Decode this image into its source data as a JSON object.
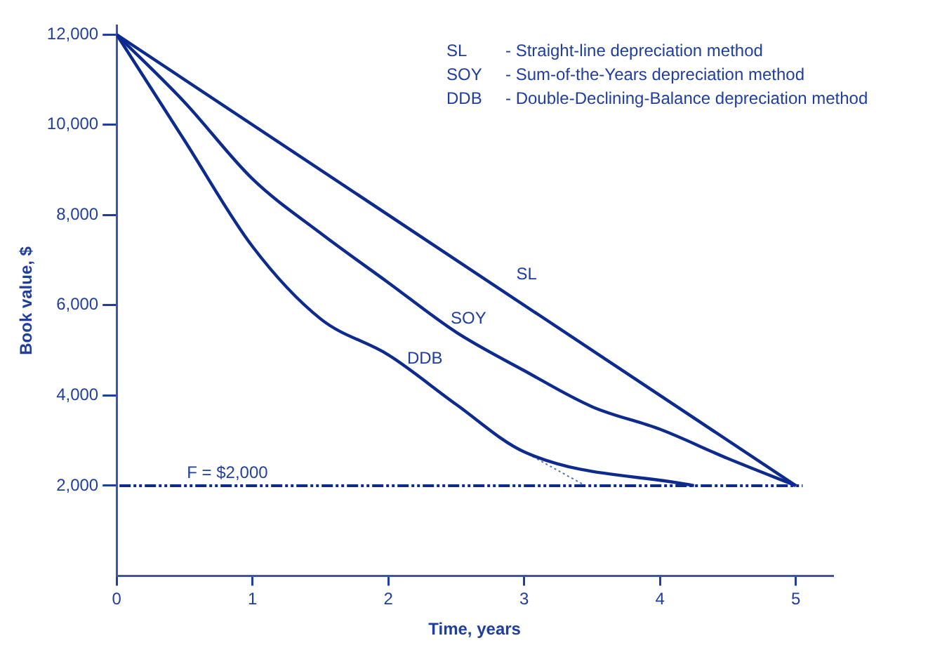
{
  "chart_data": {
    "type": "line",
    "xlabel": "Time, years",
    "ylabel": "Book value, $",
    "xlim": [
      0,
      5.27
    ],
    "xticks": [
      0,
      1,
      2,
      3,
      4,
      5
    ],
    "ylim": [
      0,
      12200
    ],
    "yticks": [
      {
        "value": 2000,
        "label": "2,000"
      },
      {
        "value": 4000,
        "label": "4,000"
      },
      {
        "value": 6000,
        "label": "6,000"
      },
      {
        "value": 8000,
        "label": "8,000"
      },
      {
        "value": 10000,
        "label": "10,000"
      },
      {
        "value": 12000,
        "label": "12,000"
      }
    ],
    "grid": false,
    "legend": false,
    "marker": "none",
    "series": [
      {
        "name": "SL",
        "color": "#0d2a8f",
        "x": [
          0,
          5
        ],
        "values": [
          12000,
          2000
        ]
      },
      {
        "name": "SOY",
        "color": "#0d2a8f",
        "x": [
          0,
          0.5,
          1,
          1.5,
          2,
          2.5,
          3,
          3.5,
          4,
          4.5,
          5
        ],
        "values": [
          12000,
          10500,
          8800,
          7600,
          6500,
          5400,
          4550,
          3750,
          3250,
          2600,
          2000
        ]
      },
      {
        "name": "DDB",
        "color": "#0d2a8f",
        "x": [
          0,
          0.5,
          1,
          1.5,
          2,
          2.5,
          3,
          4.25
        ],
        "values": [
          12000,
          9650,
          7300,
          5700,
          4900,
          3800,
          2750,
          2000
        ]
      },
      {
        "color": "#5a6fb8",
        "line_style": "dotted",
        "x": [
          3,
          3.45
        ],
        "values": [
          2750,
          2000
        ]
      }
    ],
    "ref_lines": [
      {
        "axis": "y",
        "value": 2000,
        "label": "F = $2,000",
        "color": "#0d2a8f",
        "line_style": "dashdot"
      }
    ],
    "annotations": [
      "SL - Straight-line depreciation method",
      "SOY - Sum-of-the-Years depreciation method",
      "DDB - Double-Declining-Balance depreciation method"
    ]
  }
}
